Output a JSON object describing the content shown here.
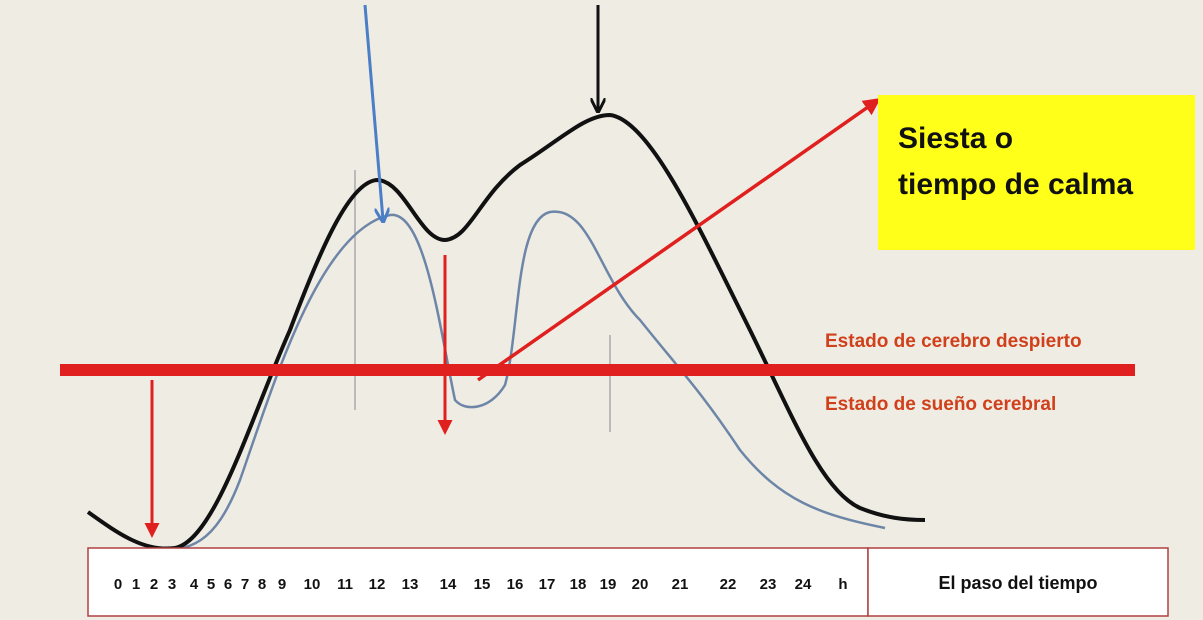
{
  "callout": {
    "lines": [
      "Siesta o",
      "tiempo de calma"
    ]
  },
  "labels": {
    "awake": "Estado de cerebro despierto",
    "asleep": "Estado de sueño cerebral"
  },
  "axis": {
    "hours": [
      "0",
      "1",
      "2",
      "3",
      "4",
      "5",
      "6",
      "7",
      "8",
      "9",
      "10",
      "11",
      "12",
      "13",
      "14",
      "15",
      "16",
      "17",
      "18",
      "19",
      "20",
      "21",
      "22",
      "23",
      "24",
      "h"
    ],
    "caption": "El paso del tiempo"
  }
}
